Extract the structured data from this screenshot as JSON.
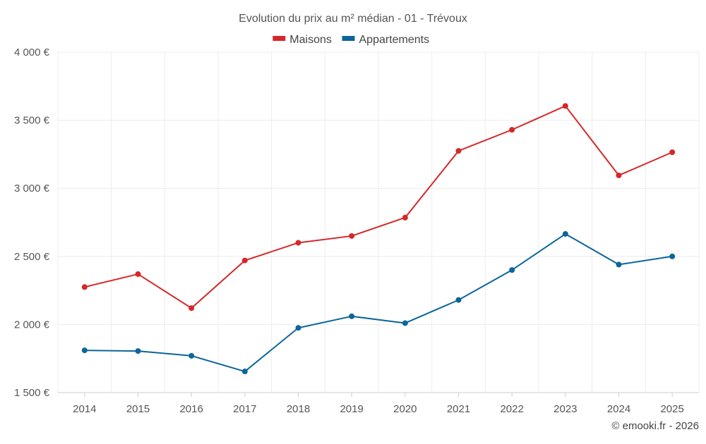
{
  "chart_data": {
    "type": "line",
    "title": "Evolution du prix au m² médian - 01 - Trévoux",
    "categories": [
      "2014",
      "2015",
      "2016",
      "2017",
      "2018",
      "2019",
      "2020",
      "2021",
      "2022",
      "2023",
      "2024",
      "2025"
    ],
    "series": [
      {
        "name": "Maisons",
        "color": "#d62728",
        "values": [
          2275,
          2370,
          2120,
          2470,
          2600,
          2650,
          2785,
          3275,
          3430,
          3605,
          3095,
          3265
        ]
      },
      {
        "name": "Appartements",
        "color": "#0b6699",
        "values": [
          1810,
          1805,
          1770,
          1655,
          1975,
          2060,
          2010,
          2180,
          2400,
          2665,
          2440,
          2500
        ]
      }
    ],
    "ylim": [
      1500,
      4000
    ],
    "yticks": [
      1500,
      2000,
      2500,
      3000,
      3500,
      4000
    ],
    "ytick_labels": [
      "1 500 €",
      "2 000 €",
      "2 500 €",
      "3 000 €",
      "3 500 €",
      "4 000 €"
    ],
    "legend_position": "top-center",
    "grid": true,
    "xlabel": "",
    "ylabel": ""
  },
  "credit": "© emooki.fr - 2026"
}
